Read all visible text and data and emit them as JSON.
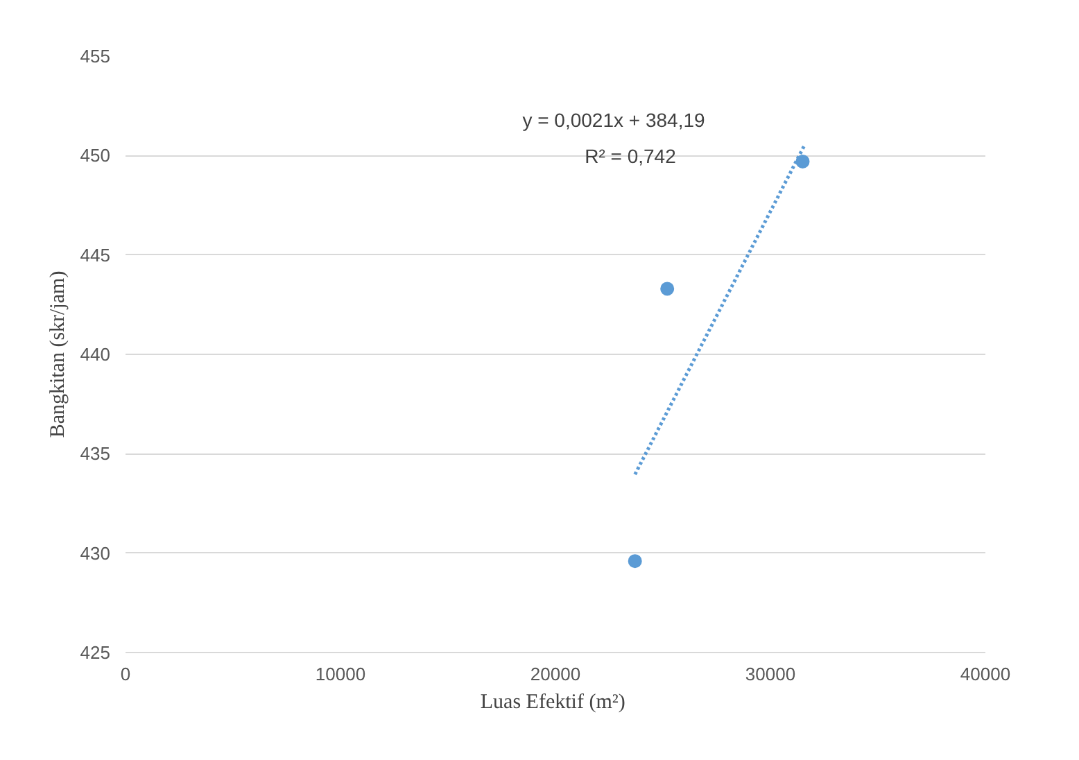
{
  "chart_data": {
    "type": "scatter",
    "xlabel": "Luas Efektif  (m²)",
    "ylabel": "Bangkitan (skr/jam)",
    "series": [
      {
        "color": "#5b9bd5",
        "x": [
          23700,
          25200,
          31500
        ],
        "values": [
          429.6,
          443.3,
          449.7
        ],
        "marker": "circle"
      },
      {
        "type": "line",
        "color": "#5b9bd5",
        "x": [
          23700,
          31600
        ],
        "values": [
          433.96,
          450.55
        ],
        "line_style": "dotted"
      }
    ],
    "annotations": [
      "y = 0,0021x + 384,19",
      "R² = 0,742"
    ],
    "xlim": [
      0,
      40000
    ],
    "ylim": [
      425,
      455
    ],
    "xticks": [
      0,
      10000,
      20000,
      30000,
      40000
    ],
    "yticks": [
      425,
      430,
      435,
      440,
      445,
      450,
      455
    ],
    "grid": "y"
  }
}
